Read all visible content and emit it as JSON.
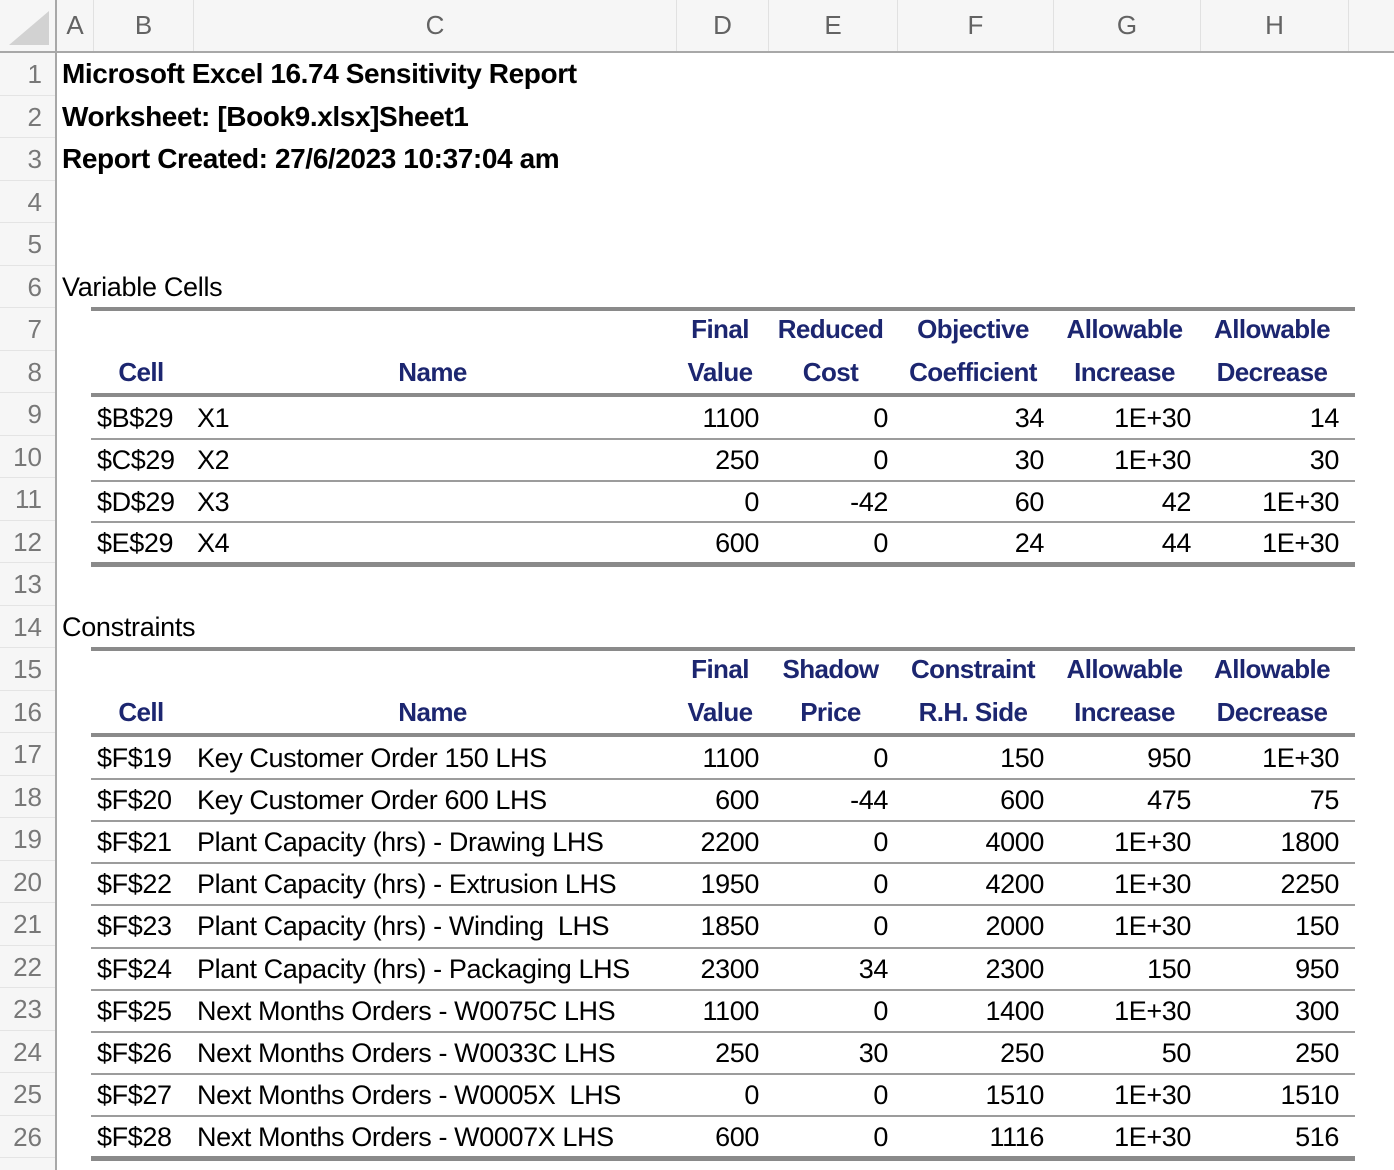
{
  "sheet": {
    "column_letters": [
      "A",
      "B",
      "C",
      "D",
      "E",
      "F",
      "G",
      "H"
    ],
    "row_numbers": [
      "1",
      "2",
      "3",
      "4",
      "5",
      "6",
      "7",
      "8",
      "9",
      "10",
      "11",
      "12",
      "13",
      "14",
      "15",
      "16",
      "17",
      "18",
      "19",
      "20",
      "21",
      "22",
      "23",
      "24",
      "25",
      "26"
    ]
  },
  "report": {
    "title": "Microsoft Excel 16.74 Sensitivity Report",
    "worksheet_line": "Worksheet: [Book9.xlsx]Sheet1",
    "created_line": "Report Created: 27/6/2023 10:37:04 am"
  },
  "variable_cells": {
    "section_label": "Variable Cells",
    "headers_line1": [
      "Final",
      "Reduced",
      "Objective",
      "Allowable",
      "Allowable"
    ],
    "headers_line2": [
      "Cell",
      "Name",
      "Value",
      "Cost",
      "Coefficient",
      "Increase",
      "Decrease"
    ],
    "rows": [
      [
        "$B$29",
        "X1",
        "1100",
        "0",
        "34",
        "1E+30",
        "14"
      ],
      [
        "$C$29",
        "X2",
        "250",
        "0",
        "30",
        "1E+30",
        "30"
      ],
      [
        "$D$29",
        "X3",
        "0",
        "-42",
        "60",
        "42",
        "1E+30"
      ],
      [
        "$E$29",
        "X4",
        "600",
        "0",
        "24",
        "44",
        "1E+30"
      ]
    ]
  },
  "constraints": {
    "section_label": "Constraints",
    "headers_line1": [
      "Final",
      "Shadow",
      "Constraint",
      "Allowable",
      "Allowable"
    ],
    "headers_line2": [
      "Cell",
      "Name",
      "Value",
      "Price",
      "R.H. Side",
      "Increase",
      "Decrease"
    ],
    "rows": [
      [
        "$F$19",
        "Key Customer Order 150 LHS",
        "1100",
        "0",
        "150",
        "950",
        "1E+30"
      ],
      [
        "$F$20",
        "Key Customer Order 600 LHS",
        "600",
        "-44",
        "600",
        "475",
        "75"
      ],
      [
        "$F$21",
        "Plant Capacity (hrs) - Drawing LHS",
        "2200",
        "0",
        "4000",
        "1E+30",
        "1800"
      ],
      [
        "$F$22",
        "Plant Capacity (hrs) - Extrusion LHS",
        "1950",
        "0",
        "4200",
        "1E+30",
        "2250"
      ],
      [
        "$F$23",
        "Plant Capacity (hrs) - Winding  LHS",
        "1850",
        "0",
        "2000",
        "1E+30",
        "150"
      ],
      [
        "$F$24",
        "Plant Capacity (hrs) - Packaging LHS",
        "2300",
        "34",
        "2300",
        "150",
        "950"
      ],
      [
        "$F$25",
        "Next Months Orders - W0075C LHS",
        "1100",
        "0",
        "1400",
        "1E+30",
        "300"
      ],
      [
        "$F$26",
        "Next Months Orders - W0033C LHS",
        "250",
        "30",
        "250",
        "50",
        "250"
      ],
      [
        "$F$27",
        "Next Months Orders - W0005X  LHS",
        "0",
        "0",
        "1510",
        "1E+30",
        "1510"
      ],
      [
        "$F$28",
        "Next Months Orders - W0007X LHS",
        "600",
        "0",
        "1116",
        "1E+30",
        "516"
      ]
    ]
  },
  "colors": {
    "header_text": "#1c2670",
    "body_text": "#000000",
    "chrome_bg": "#f6f6f6",
    "chrome_border": "#a8a8a8",
    "table_border_thick": "#8a8a8a",
    "table_border_thin": "#9c9c9c"
  }
}
